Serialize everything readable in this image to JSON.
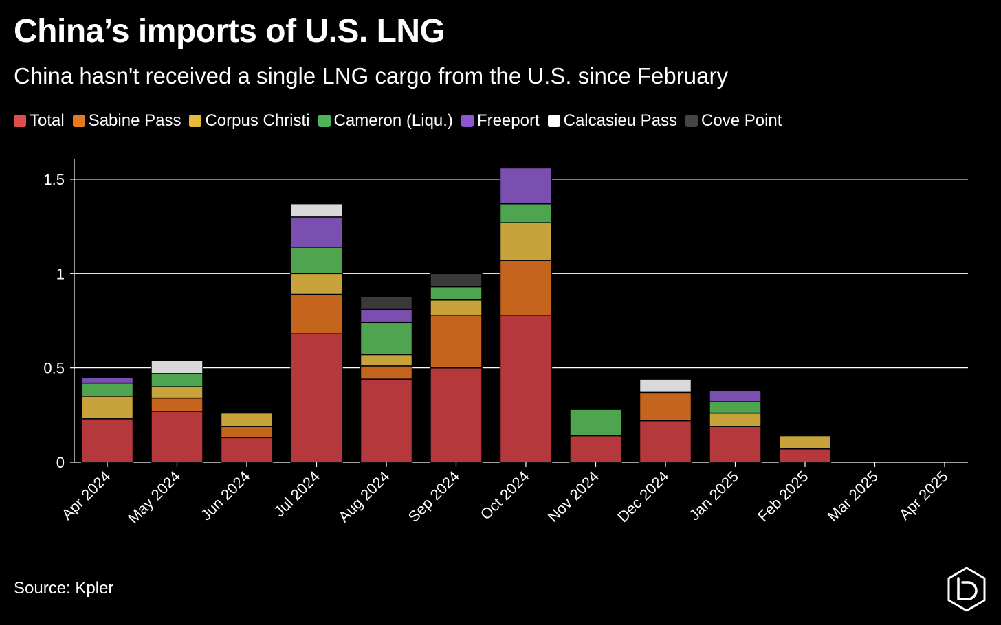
{
  "title": "China’s imports of U.S. LNG",
  "subtitle": "China hasn't received a single LNG cargo from the U.S. since February",
  "source": "Source: Kpler",
  "logo_icon": "brand-d-logo-icon",
  "chart_data": {
    "type": "bar",
    "stacked": true,
    "categories": [
      "Apr 2024",
      "May 2024",
      "Jun 2024",
      "Jul 2024",
      "Aug 2024",
      "Sep 2024",
      "Oct 2024",
      "Nov 2024",
      "Dec 2024",
      "Jan 2025",
      "Feb 2025",
      "Mar 2025",
      "Apr 2025"
    ],
    "series": [
      {
        "name": "Total",
        "color": "#b5383c",
        "values": [
          0.23,
          0.27,
          0.13,
          0.68,
          0.44,
          0.5,
          0.78,
          0.14,
          0.22,
          0.19,
          0.07,
          0,
          0
        ]
      },
      {
        "name": "Sabine Pass",
        "color": "#c5651d",
        "values": [
          0,
          0.07,
          0.06,
          0.21,
          0.07,
          0.28,
          0.29,
          0,
          0.15,
          0,
          0,
          0,
          0
        ]
      },
      {
        "name": "Corpus Christi",
        "color": "#c8a23a",
        "values": [
          0.12,
          0.06,
          0.07,
          0.11,
          0.06,
          0.08,
          0.2,
          0,
          0,
          0.07,
          0.07,
          0,
          0
        ]
      },
      {
        "name": "Cameron (Liqu.)",
        "color": "#4ea44f",
        "values": [
          0.07,
          0.07,
          0,
          0.14,
          0.17,
          0.07,
          0.1,
          0.14,
          0,
          0.06,
          0,
          0,
          0
        ]
      },
      {
        "name": "Freeport",
        "color": "#7a4fb0",
        "values": [
          0.03,
          0,
          0,
          0.16,
          0.07,
          0,
          0.19,
          0,
          0,
          0.06,
          0,
          0,
          0
        ]
      },
      {
        "name": "Calcasieu Pass",
        "color": "#d9d9d9",
        "values": [
          0,
          0.07,
          0,
          0.07,
          0,
          0,
          0,
          0,
          0.07,
          0,
          0,
          0,
          0
        ]
      },
      {
        "name": "Cove Point",
        "color": "#3a3a3a",
        "values": [
          0,
          0,
          0,
          0,
          0.07,
          0.07,
          0,
          0,
          0,
          0,
          0,
          0,
          0
        ]
      }
    ],
    "legend_colors": [
      "#e04b4b",
      "#e67a22",
      "#e8b93a",
      "#4fb35a",
      "#8c58d0",
      "#ffffff",
      "#454545"
    ],
    "yticks": [
      0,
      0.5,
      1,
      1.5
    ],
    "ytick_labels": [
      "0",
      "0.5",
      "1",
      "1.5"
    ],
    "ylim": [
      0,
      1.6
    ],
    "xlabel": "",
    "ylabel": "",
    "grid": true,
    "legend_position": "top-left"
  }
}
